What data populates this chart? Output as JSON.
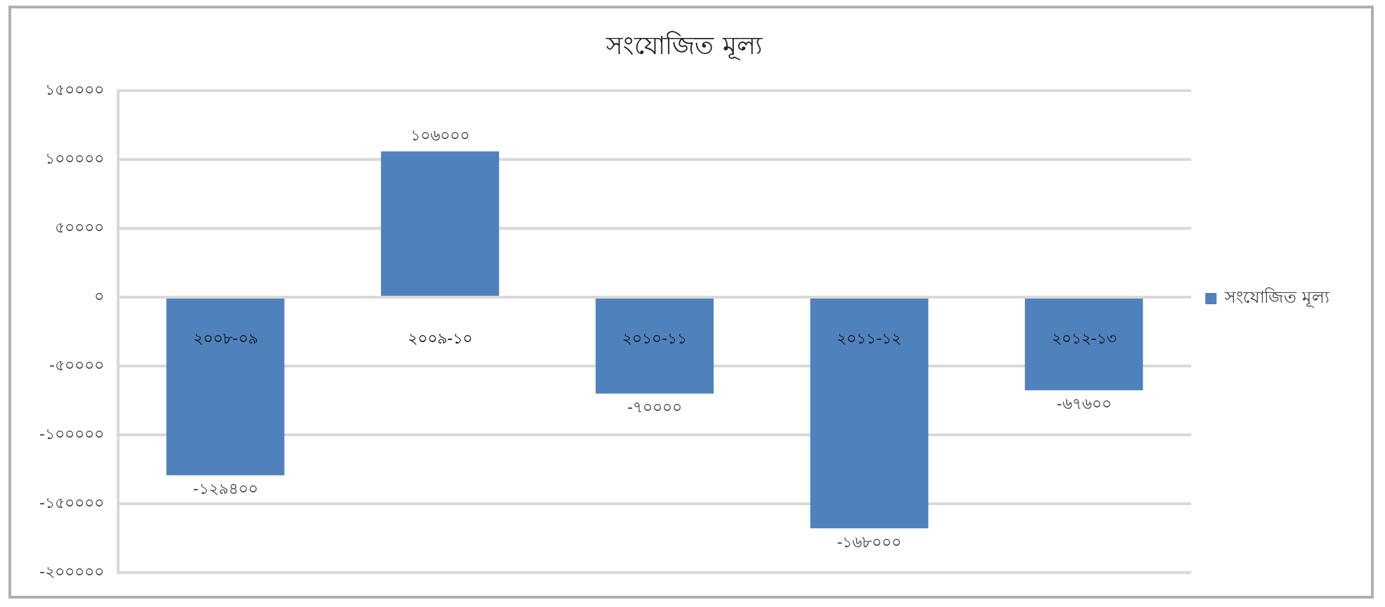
{
  "chart_data": {
    "type": "bar",
    "title": "সংযোজিত মূল্য",
    "categories": [
      "২০০৮-০৯",
      "২০০৯-১০",
      "২০১০-১১",
      "২০১১-১২",
      "২০১২-১৩"
    ],
    "series": [
      {
        "name": "সংযোজিত মূল্য",
        "color": "#4f81bd",
        "values": [
          -129400,
          106000,
          -70000,
          -168000,
          -67600
        ],
        "value_labels": [
          "-১২৯৪০০",
          "১০৬০০০",
          "-৭০০০০",
          "-১৬৮০০০",
          "-৬৭৬০০"
        ]
      }
    ],
    "ylim": [
      -200000,
      150000
    ],
    "yticks": [
      {
        "value": -200000,
        "label": "-২০০০০০"
      },
      {
        "value": -150000,
        "label": "-১৫০০০০"
      },
      {
        "value": -100000,
        "label": "-১০০০০০"
      },
      {
        "value": -50000,
        "label": "-৫০০০০"
      },
      {
        "value": 0,
        "label": "০"
      },
      {
        "value": 50000,
        "label": "৫০০০০"
      },
      {
        "value": 100000,
        "label": "১০০০০০"
      },
      {
        "value": 150000,
        "label": "১৫০০০০"
      }
    ],
    "grid": "y",
    "legend": "right"
  }
}
